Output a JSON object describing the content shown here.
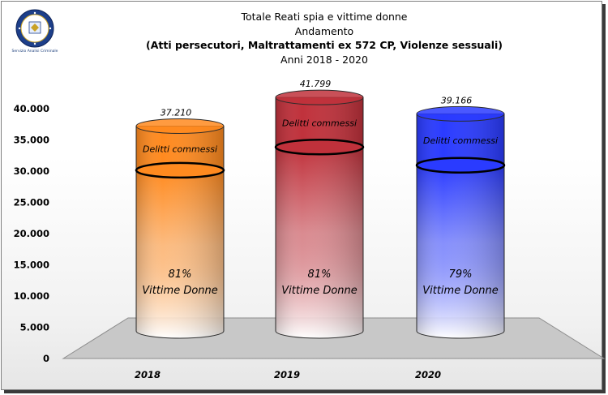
{
  "title": {
    "line1": "Totale Reati spia e vittime donne",
    "line2": "Andamento",
    "line3": "(Atti persecutori, Maltrattamenti  ex 572 CP, Violenze sessuali)",
    "line4": "Anni 2018 - 2020"
  },
  "logo": {
    "caption": "Servizio Analisi Criminale",
    "icon": "police-emblem-icon"
  },
  "chart_data": {
    "type": "bar",
    "stacked": true,
    "shape": "3d-cylinder",
    "categories": [
      "2018",
      "2019",
      "2020"
    ],
    "totals": [
      37210,
      41799,
      39166
    ],
    "total_labels": [
      "37.210",
      "41.799",
      "39.166"
    ],
    "percent_labels": [
      "81%",
      "81%",
      "79%"
    ],
    "series": [
      {
        "name": "Vittime Donne",
        "share": [
          0.81,
          0.81,
          0.79
        ]
      },
      {
        "name": "Delitti commessi",
        "share": [
          0.19,
          0.19,
          0.21
        ]
      }
    ],
    "ylim": [
      0,
      40000
    ],
    "yticks": [
      0,
      5000,
      10000,
      15000,
      20000,
      25000,
      30000,
      35000,
      40000
    ],
    "ytick_labels": [
      "0",
      "5.000",
      "10.000",
      "15.000",
      "20.000",
      "25.000",
      "30.000",
      "35.000",
      "40.000"
    ],
    "colors": [
      "#ff8a1f",
      "#c0313b",
      "#2a3bff"
    ],
    "floor_color": "#c8c8c8",
    "grid": false,
    "legend": "none"
  }
}
